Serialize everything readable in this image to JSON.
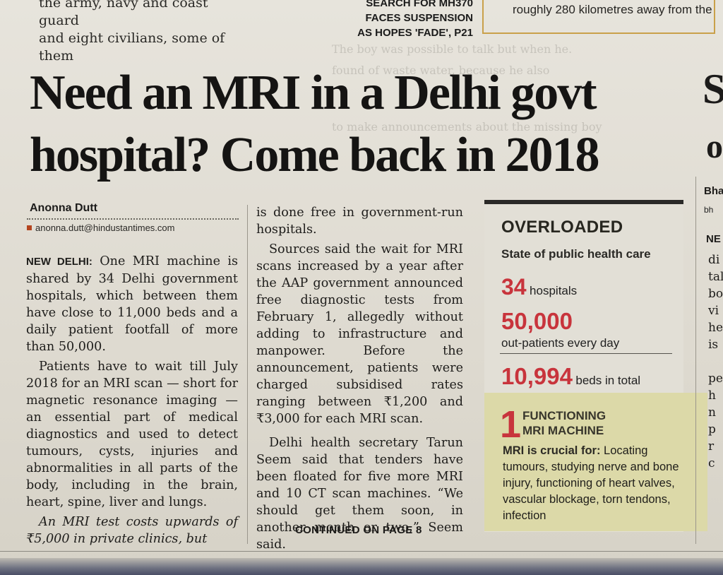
{
  "top": {
    "left_lines": [
      "the army, navy and coast guard",
      "and eight civilians, some of them"
    ],
    "mid_lines": [
      "SEARCH FOR MH370",
      "FACES SUSPENSION",
      "AS HOPES 'FADE', P21"
    ],
    "right_line": "roughly 280 kilometres away from the"
  },
  "headline": {
    "line1": "Need an MRI in a Delhi govt",
    "line2": "hospital? Come back in 2018"
  },
  "byline": {
    "name": "Anonna Dutt",
    "email": "anonna.dutt@hindustantimes.com"
  },
  "article": {
    "dateline": "NEW DELHI:",
    "p1": "One MRI machine is shared by 34 Delhi government hospitals, which between them have close to 11,000 beds and a daily patient footfall of more than 50,000.",
    "p2": "Patients have to wait till July 2018 for an MRI scan — short for magnetic resonance imaging — an essential part of medical diagnostics and used to detect tumours, cysts, injuries and abnormalities in all parts of the body, including in the brain, heart, spine, liver and lungs.",
    "p3": "An MRI test costs upwards of ₹5,000 in private clinics, but",
    "c2p1": "is done free in government-run hospitals.",
    "c2p2": "Sources said the wait for MRI scans increased by a year after the AAP government announced free diagnostic tests from February 1, allegedly without adding to infrastructure and manpower. Before the announcement, patients were charged subsidised rates ranging between ₹1,200 and ₹3,000 for each MRI scan.",
    "c2p3": "Delhi health secretary Tarun Seem said that tenders have been floated for five more MRI and 10 CT scan machines. “We should get them soon, in another month or two,” Seem said.",
    "continued": "CONTINUED ON PAGE 8"
  },
  "infobox": {
    "title": "OVERLOADED",
    "subtitle": "State of public health care",
    "stat1_value": "34",
    "stat1_label": "hospitals",
    "stat2_value": "50,000",
    "stat2_label": "out-patients every day",
    "stat3_value": "10,994",
    "stat3_label": "beds in total",
    "mri_value": "1",
    "mri_head1": "FUNCTIONING",
    "mri_head2": "MRI MACHINE",
    "mri_lead": "MRI is crucial for:",
    "mri_text": "Locating tumours, studying nerve and bone injury, functioning of heart valves, vascular blockage, torn tendons, infection"
  },
  "right_edge": {
    "headline_s": "S",
    "headline_o": "o",
    "byline": "Bha",
    "email": "bh",
    "dateline": "NE",
    "fragments": [
      "di",
      "tal",
      "bo",
      "vi",
      "he",
      "is",
      "pe",
      "h",
      "n",
      "p",
      "r",
      "c"
    ]
  },
  "colors": {
    "stat_red": "#c8343c",
    "mri_box_bg": "#dcd9a8",
    "top_box_border": "#c9a04a"
  }
}
